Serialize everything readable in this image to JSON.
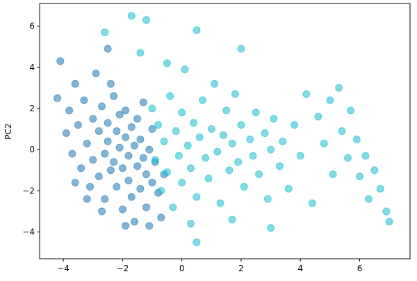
{
  "chart_data": {
    "type": "scatter",
    "y_label": "PC2",
    "xlim": [
      -4.8,
      7.7
    ],
    "ylim": [
      -5.3,
      7.1
    ],
    "xticks": [
      {
        "value": -4,
        "label": "−4"
      },
      {
        "value": -2,
        "label": "−2"
      },
      0,
      2,
      4,
      6
    ],
    "yticks": [
      {
        "value": -4,
        "label": "−4"
      },
      {
        "value": -2,
        "label": "−2"
      },
      0,
      2,
      4,
      6
    ],
    "grid": false,
    "series": [
      {
        "color": "#1f77b4",
        "x": [
          -4.2,
          -4.1,
          -3.9,
          -3.8,
          -3.7,
          -3.6,
          -3.5,
          -3.4,
          -3.3,
          -3.2,
          -3.1,
          -3.0,
          -3.0,
          -2.9,
          -2.8,
          -2.8,
          -2.7,
          -2.6,
          -2.6,
          -2.5,
          -2.5,
          -2.4,
          -2.3,
          -2.3,
          -2.2,
          -2.2,
          -2.1,
          -2.1,
          -2.0,
          -2.0,
          -1.9,
          -1.9,
          -1.8,
          -1.8,
          -1.7,
          -1.7,
          -1.6,
          -1.6,
          -1.5,
          -1.5,
          -1.4,
          -1.4,
          -1.3,
          -1.3,
          -1.2,
          -1.2,
          -1.1,
          -1.0,
          -1.0,
          -0.9,
          -0.8,
          -0.7,
          -0.6,
          -2.5,
          -3.2,
          -2.7,
          -3.6,
          -1.9,
          -1.1,
          -2.4
        ],
        "values": [
          2.5,
          4.3,
          0.8,
          1.9,
          -0.2,
          3.2,
          1.2,
          -0.9,
          2.4,
          0.3,
          -1.8,
          1.5,
          -0.5,
          3.7,
          0.9,
          -1.3,
          2.1,
          -0.2,
          -2.4,
          1.3,
          0.4,
          -1.0,
          2.6,
          -0.6,
          0.9,
          -1.8,
          1.7,
          0.1,
          -2.9,
          -0.9,
          0.6,
          1.9,
          -0.3,
          -1.5,
          1.1,
          -2.3,
          0.2,
          -3.5,
          -0.8,
          1.5,
          -1.9,
          0.5,
          -0.4,
          2.3,
          -1.2,
          -2.8,
          0.0,
          -1.6,
          1.0,
          -0.6,
          -2.1,
          -3.3,
          -1.2,
          4.9,
          -2.4,
          -3.0,
          -1.6,
          -3.7,
          -3.7,
          3.2
        ]
      },
      {
        "color": "#17becf",
        "x": [
          -1.7,
          -1.2,
          -2.6,
          -1.4,
          -1.0,
          -0.9,
          -0.8,
          -0.7,
          -0.6,
          -0.5,
          -0.4,
          -0.3,
          -0.2,
          -0.1,
          0.0,
          0.0,
          0.1,
          0.2,
          0.3,
          0.3,
          0.4,
          0.5,
          0.5,
          0.6,
          0.7,
          0.8,
          0.9,
          1.0,
          1.1,
          1.2,
          1.3,
          1.4,
          1.5,
          1.6,
          1.7,
          1.8,
          1.9,
          2.0,
          2.0,
          2.1,
          2.3,
          2.4,
          2.5,
          2.6,
          2.8,
          2.9,
          3.0,
          3.1,
          3.3,
          3.4,
          3.6,
          3.8,
          4.0,
          4.2,
          4.4,
          4.6,
          4.8,
          5.0,
          5.1,
          5.3,
          5.4,
          5.6,
          5.7,
          5.9,
          6.0,
          6.2,
          6.3,
          6.5,
          6.7,
          6.9,
          7.0,
          0.5,
          1.7,
          3.0,
          -0.5
        ],
        "values": [
          6.5,
          6.3,
          5.7,
          4.7,
          2.0,
          -0.5,
          1.2,
          -2.0,
          0.4,
          -1.1,
          2.6,
          -2.8,
          0.9,
          -0.3,
          1.8,
          -1.6,
          3.9,
          0.2,
          -3.6,
          -0.9,
          1.3,
          5.8,
          -2.3,
          0.6,
          2.4,
          -0.4,
          -1.4,
          1.0,
          3.2,
          -0.1,
          -2.6,
          0.7,
          1.9,
          -1.0,
          0.3,
          2.7,
          -0.6,
          4.9,
          1.2,
          -1.8,
          0.5,
          -0.3,
          1.8,
          -1.2,
          0.8,
          -2.4,
          0.0,
          1.5,
          -0.8,
          0.4,
          -1.9,
          1.2,
          -0.3,
          2.7,
          -2.6,
          1.6,
          0.3,
          2.4,
          -1.2,
          3.0,
          0.9,
          -0.4,
          1.9,
          0.5,
          -1.3,
          -0.3,
          -2.4,
          -1.0,
          -1.9,
          -3.0,
          -3.5,
          -4.5,
          -3.4,
          -3.8,
          4.2
        ]
      }
    ]
  }
}
